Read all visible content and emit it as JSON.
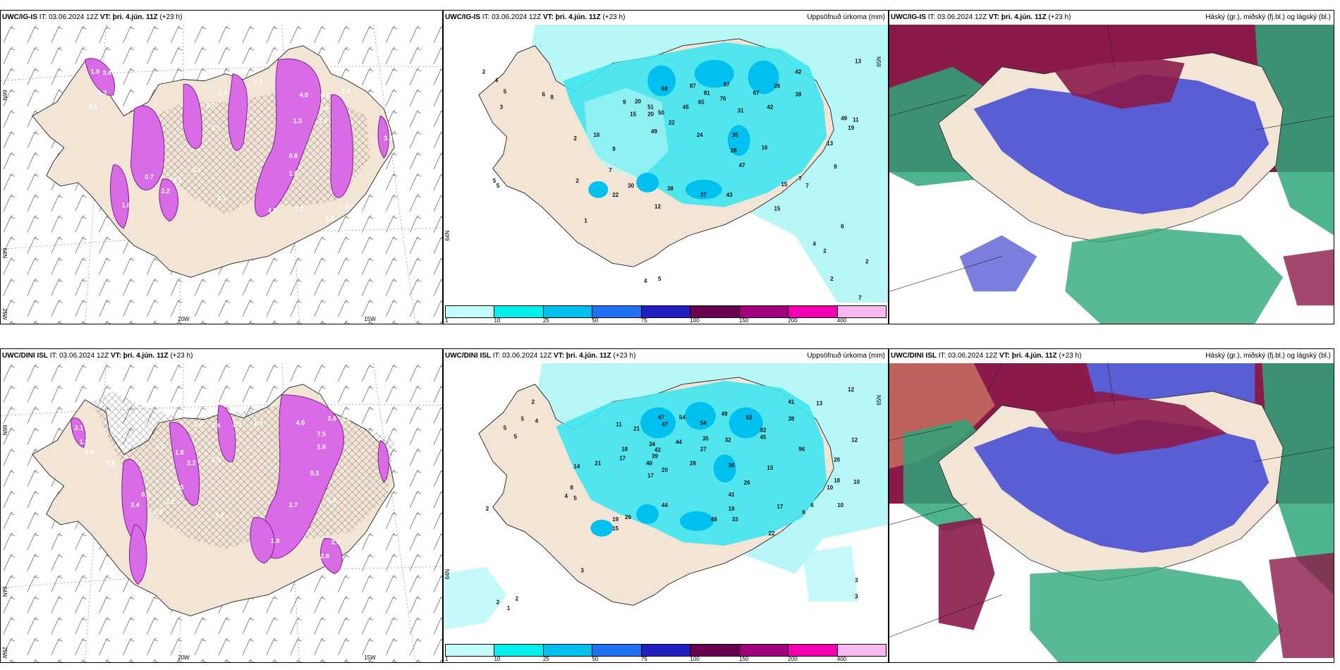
{
  "panels": {
    "top_left": {
      "model": "UWC/IG-IS",
      "it_label": "IT:",
      "it": "03.06.2024 12Z",
      "vt_label": "VT:",
      "vt": "þri. 4.jún. 11Z",
      "lead": "(+23 h)",
      "axis": {
        "lat_top": "66N",
        "lat_mid": "64N",
        "lon_left": "25W",
        "lon_mid": "20W",
        "lon_right": "15W"
      },
      "values": [
        "1.9",
        "3.4",
        "1.3",
        "2.0",
        "2.8",
        "2.7",
        "4.0",
        "0.7",
        "2.8",
        "0.9",
        "0.5",
        "1.4",
        "3.3",
        "1.1",
        "0.5",
        "2.1",
        "1.8",
        "4.0",
        "2.7",
        "1.9",
        "0.7",
        "0.9",
        "1.8",
        "2.2",
        "1.3",
        "0.8",
        "2.7"
      ]
    },
    "top_mid": {
      "model": "UWC/IG-IS",
      "it_label": "IT:",
      "it": "03.06.2024 12Z",
      "vt_label": "VT:",
      "vt": "þri. 4.jún. 11Z",
      "lead": "(+23 h)",
      "right_title": "Uppsöfnuð úrkoma (mm)",
      "axis": {
        "lat_top": "65N",
        "lat_mid": "64N"
      },
      "values": [
        "2",
        "4",
        "5",
        "3",
        "6",
        "8",
        "13",
        "9",
        "20",
        "68",
        "87",
        "81",
        "87",
        "42",
        "26",
        "15",
        "20",
        "50",
        "45",
        "76",
        "67",
        "38",
        "51",
        "65",
        "31",
        "42",
        "49",
        "10",
        "49",
        "22",
        "24",
        "35",
        "19",
        "11",
        "2",
        "9",
        "7",
        "28",
        "16",
        "13",
        "2",
        "30",
        "38",
        "47",
        "9",
        "5",
        "22",
        "12",
        "37",
        "43",
        "15",
        "15",
        "7",
        "7",
        "1",
        "6",
        "4",
        "2",
        "2",
        "2",
        "7",
        "5",
        "4",
        "5"
      ],
      "colorbar": {
        "labels": [
          "1",
          "10",
          "25",
          "50",
          "75",
          "100",
          "150",
          "200",
          "400"
        ],
        "colors": [
          "#c4fbfb",
          "#00f0f0",
          "#00c0f0",
          "#2070f0",
          "#2020c0",
          "#6a0050",
          "#a00080",
          "#f000b0",
          "#f8b8f0"
        ]
      }
    },
    "top_right": {
      "model": "UWC/IG-IS",
      "it_label": "IT:",
      "it": "03.06.2024 12Z",
      "vt_label": "VT:",
      "vt": "þri. 4.jún. 11Z",
      "lead": "(+23 h)",
      "right_title": "Háský (gr.), miðský (fj.bl.) og lágský (bl.)"
    },
    "bot_left": {
      "model": "UWC/DINI ISL",
      "it_label": "IT:",
      "it": "03.06.2024 12Z",
      "vt_label": "VT:",
      "vt": "þri. 4.jún. 11Z",
      "lead": "(+23 h)",
      "axis": {
        "lat_top": "66N",
        "lat_mid": "64N",
        "lon_left": "25W",
        "lon_mid": "20W",
        "lon_right": "15W"
      },
      "values": [
        "2.1",
        "1.2",
        "0.8",
        "2.6",
        "3.4",
        "2.5",
        "1.9",
        "4.0",
        "2.6",
        "3.0",
        "0.5",
        "1.7",
        "1.8",
        "2.2",
        "1.5",
        "7.5",
        "1.6",
        "0.3",
        "2.4",
        "2.2",
        "0.9",
        "2.5",
        "2.7",
        "1.0",
        "3.2",
        "0.5",
        "3.0",
        "2.6",
        "1.9"
      ]
    },
    "bot_mid": {
      "model": "UWC/DINI ISL",
      "it_label": "IT:",
      "it": "03.06.2024 12Z",
      "vt_label": "VT:",
      "vt": "þri. 4.jún. 11Z",
      "lead": "(+23 h)",
      "right_title": "Uppsöfnuð úrkoma (mm)",
      "axis": {
        "lat_top": "65N",
        "lat_mid": "64N"
      },
      "values": [
        "2",
        "5",
        "4",
        "5",
        "5",
        "11",
        "21",
        "47",
        "54",
        "49",
        "62",
        "41",
        "13",
        "12",
        "47",
        "54",
        "82",
        "38",
        "18",
        "34",
        "42",
        "44",
        "35",
        "32",
        "45",
        "12",
        "39",
        "27",
        "96",
        "20",
        "40",
        "17",
        "28",
        "36",
        "18",
        "14",
        "21",
        "17",
        "20",
        "8",
        "26",
        "15",
        "10",
        "10",
        "2",
        "4",
        "5",
        "41",
        "18",
        "44",
        "48",
        "33",
        "17",
        "6",
        "6",
        "19",
        "26",
        "15",
        "22",
        "10",
        "2",
        "2",
        "1",
        "3",
        "3",
        "3"
      ],
      "colorbar": {
        "labels": [
          "1",
          "10",
          "25",
          "50",
          "75",
          "100",
          "150",
          "200",
          "400"
        ],
        "colors": [
          "#c4fbfb",
          "#00f0f0",
          "#00c0f0",
          "#2070f0",
          "#2020c0",
          "#6a0050",
          "#a00080",
          "#f000b0",
          "#f8b8f0"
        ]
      }
    },
    "bot_right": {
      "model": "UWC/DINI ISL",
      "it_label": "IT:",
      "it": "03.06.2024 12Z",
      "vt_label": "VT:",
      "vt": "þri. 4.jún. 11Z",
      "lead": "(+23 h)",
      "right_title": "Háský (gr.), miðský (fj.bl.) og lágský (bl.)"
    }
  },
  "colors": {
    "land": "#f3e5d5",
    "wet_light": "#b8f7f7",
    "wet_mid": "#3fe6ef",
    "heavy": "#d96be6",
    "cloud_high": "#8b1a4a",
    "cloud_mid": "#5a5ed4",
    "cloud_low": "#2ea77a"
  }
}
